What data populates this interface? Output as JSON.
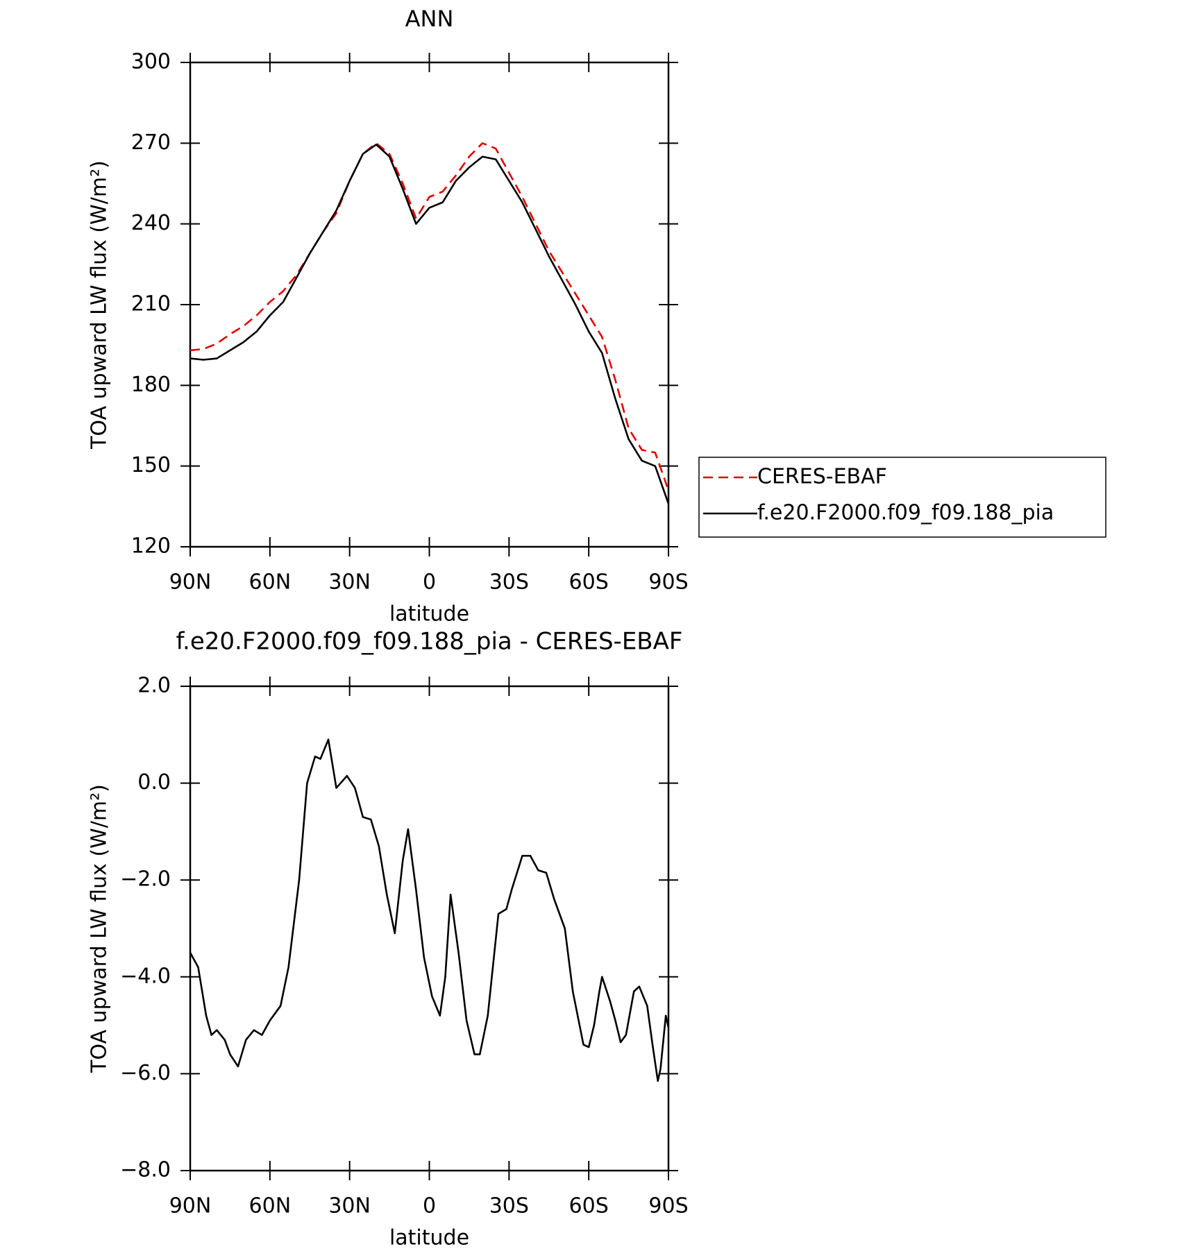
{
  "chart_data": [
    {
      "type": "line",
      "title": "ANN",
      "x_label": "latitude",
      "y_label": "TOA upward LW flux (W/m²)",
      "x": [
        90,
        85,
        80,
        75,
        70,
        65,
        60,
        55,
        50,
        45,
        40,
        35,
        30,
        25,
        20,
        15,
        10,
        5,
        0,
        -5,
        -10,
        -15,
        -20,
        -25,
        -30,
        -35,
        -40,
        -45,
        -50,
        -55,
        -60,
        -65,
        -70,
        -75,
        -80,
        -85,
        -90
      ],
      "series": [
        {
          "name": "CERES-EBAF",
          "color": "#e00000",
          "style": "dashed",
          "values": [
            193,
            193.5,
            195.5,
            199,
            202,
            206,
            211,
            215,
            221,
            229,
            237,
            244,
            256,
            266,
            270,
            266,
            255,
            242,
            250,
            252,
            258,
            265,
            270,
            268,
            259,
            250,
            240,
            230,
            222,
            214,
            206,
            198,
            182,
            164,
            156,
            155,
            141
          ]
        },
        {
          "name": "f.e20.F2000.f09_f09.188_pia",
          "color": "#000000",
          "style": "solid",
          "values": [
            190,
            189.5,
            190,
            193,
            196,
            200,
            206,
            211,
            220,
            229,
            237,
            245,
            256,
            266,
            269.5,
            265,
            253,
            240,
            246,
            248,
            256,
            261,
            265,
            264,
            256,
            248,
            238,
            228,
            219,
            210,
            200,
            192,
            175,
            160,
            152,
            150,
            136
          ]
        }
      ],
      "xlim": [
        90,
        -90
      ],
      "xticks": [
        {
          "value": 90,
          "label": "90N"
        },
        {
          "value": 60,
          "label": "60N"
        },
        {
          "value": 30,
          "label": "30N"
        },
        0,
        {
          "value": -30,
          "label": "30S"
        },
        {
          "value": -60,
          "label": "60S"
        },
        {
          "value": -90,
          "label": "90S"
        }
      ],
      "ylim": [
        120,
        300
      ],
      "yticks": [
        120,
        150,
        180,
        210,
        240,
        270,
        300
      ],
      "legend": "right"
    },
    {
      "type": "line",
      "title": "f.e20.F2000.f09_f09.188_pia - CERES-EBAF",
      "x_label": "latitude",
      "y_label": "TOA upward LW flux (W/m²)",
      "x": [
        90,
        87,
        84,
        82,
        80,
        77,
        75,
        72,
        69,
        66,
        63,
        60,
        56,
        53,
        49,
        46,
        43,
        41,
        38,
        35,
        31,
        28,
        25,
        22,
        19,
        16,
        13,
        10,
        8,
        5,
        2,
        -1,
        -4,
        -6,
        -8,
        -11,
        -14,
        -17,
        -19,
        -22,
        -26,
        -29,
        -31,
        -35,
        -38,
        -41,
        -44,
        -47,
        -51,
        -54,
        -58,
        -60,
        -62,
        -64,
        -65,
        -68,
        -70,
        -72,
        -74,
        -75,
        -77,
        -79,
        -82,
        -84,
        -86,
        -87,
        -89,
        -90
      ],
      "series": [
        {
          "color": "#000000",
          "style": "solid",
          "values": [
            -3.5,
            -3.8,
            -4.8,
            -5.2,
            -5.1,
            -5.3,
            -5.6,
            -5.85,
            -5.3,
            -5.1,
            -5.2,
            -4.9,
            -4.6,
            -3.8,
            -2.0,
            0.0,
            0.55,
            0.5,
            0.9,
            -0.1,
            0.15,
            -0.1,
            -0.7,
            -0.75,
            -1.3,
            -2.3,
            -3.1,
            -1.6,
            -0.95,
            -2.2,
            -3.6,
            -4.4,
            -4.8,
            -4.0,
            -2.3,
            -3.5,
            -4.9,
            -5.6,
            -5.6,
            -4.8,
            -2.7,
            -2.6,
            -2.2,
            -1.5,
            -1.5,
            -1.8,
            -1.85,
            -2.4,
            -3.0,
            -4.3,
            -5.4,
            -5.45,
            -5.0,
            -4.3,
            -4.0,
            -4.5,
            -4.9,
            -5.35,
            -5.2,
            -4.9,
            -4.3,
            -4.2,
            -4.6,
            -5.4,
            -6.15,
            -5.9,
            -4.8,
            -5.05
          ]
        }
      ],
      "xlim": [
        90,
        -90
      ],
      "xticks": [
        {
          "value": 90,
          "label": "90N"
        },
        {
          "value": 60,
          "label": "60N"
        },
        {
          "value": 30,
          "label": "30N"
        },
        0,
        {
          "value": -30,
          "label": "30S"
        },
        {
          "value": -60,
          "label": "60S"
        },
        {
          "value": -90,
          "label": "90S"
        }
      ],
      "ylim": [
        -8,
        2
      ],
      "yticks": [
        {
          "value": -8,
          "label": "−8.0"
        },
        {
          "value": -6,
          "label": "−6.0"
        },
        {
          "value": -4,
          "label": "−4.0"
        },
        {
          "value": -2,
          "label": "−2.0"
        },
        {
          "value": 0,
          "label": "0.0"
        },
        {
          "value": 2,
          "label": "2.0"
        }
      ]
    }
  ]
}
